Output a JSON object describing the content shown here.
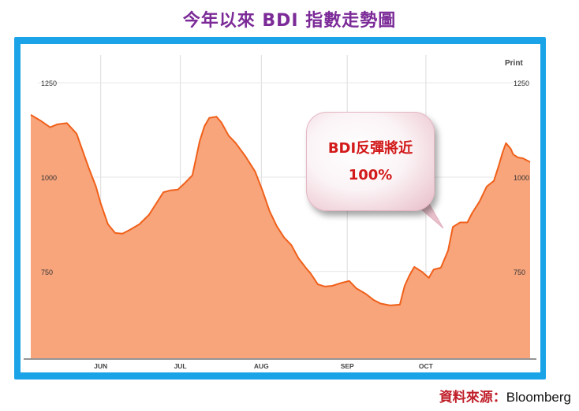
{
  "title": "今年以來 BDI 指數走勢圖",
  "print_label": "Print",
  "source": {
    "label": "資料來源：",
    "value": "Bloomberg"
  },
  "callout": {
    "line1": "BDI反彈將近",
    "line2": "100%"
  },
  "colors": {
    "fill": "#f8a57c",
    "line": "#f0601a",
    "frame": "#1ba3e8",
    "title": "#7b2a97",
    "callout_text": "#d21a1a"
  },
  "chart_data": {
    "type": "area",
    "ylim": [
      520,
      1340
    ],
    "yticks": [
      {
        "label": "1250",
        "value": 1250
      },
      {
        "label": "1000",
        "value": 1000
      },
      {
        "label": "750",
        "value": 750
      }
    ],
    "xticks": [
      {
        "label": "JUN",
        "pos": 0.145
      },
      {
        "label": "JUL",
        "pos": 0.31
      },
      {
        "label": "AUG",
        "pos": 0.478
      },
      {
        "label": "SEP",
        "pos": 0.656
      },
      {
        "label": "OCT",
        "pos": 0.819
      }
    ],
    "series": [
      {
        "values": [
          [
            0.0,
            1165
          ],
          [
            0.02,
            1150
          ],
          [
            0.04,
            1132
          ],
          [
            0.055,
            1140
          ],
          [
            0.075,
            1143
          ],
          [
            0.095,
            1115
          ],
          [
            0.12,
            1025
          ],
          [
            0.135,
            975
          ],
          [
            0.145,
            930
          ],
          [
            0.16,
            875
          ],
          [
            0.175,
            852
          ],
          [
            0.19,
            850
          ],
          [
            0.205,
            860
          ],
          [
            0.225,
            875
          ],
          [
            0.245,
            900
          ],
          [
            0.26,
            930
          ],
          [
            0.275,
            960
          ],
          [
            0.29,
            965
          ],
          [
            0.305,
            967
          ],
          [
            0.32,
            985
          ],
          [
            0.335,
            1005
          ],
          [
            0.35,
            1095
          ],
          [
            0.36,
            1135
          ],
          [
            0.37,
            1157
          ],
          [
            0.385,
            1160
          ],
          [
            0.395,
            1145
          ],
          [
            0.41,
            1110
          ],
          [
            0.425,
            1090
          ],
          [
            0.445,
            1055
          ],
          [
            0.465,
            1015
          ],
          [
            0.48,
            965
          ],
          [
            0.495,
            910
          ],
          [
            0.51,
            870
          ],
          [
            0.525,
            840
          ],
          [
            0.54,
            820
          ],
          [
            0.555,
            785
          ],
          [
            0.57,
            760
          ],
          [
            0.58,
            745
          ],
          [
            0.595,
            716
          ],
          [
            0.61,
            710
          ],
          [
            0.625,
            712
          ],
          [
            0.645,
            720
          ],
          [
            0.66,
            725
          ],
          [
            0.675,
            705
          ],
          [
            0.695,
            690
          ],
          [
            0.71,
            675
          ],
          [
            0.725,
            665
          ],
          [
            0.745,
            660
          ],
          [
            0.765,
            662
          ],
          [
            0.775,
            712
          ],
          [
            0.785,
            740
          ],
          [
            0.795,
            762
          ],
          [
            0.81,
            750
          ],
          [
            0.825,
            733
          ],
          [
            0.835,
            755
          ],
          [
            0.85,
            760
          ],
          [
            0.865,
            805
          ],
          [
            0.875,
            868
          ],
          [
            0.89,
            880
          ],
          [
            0.905,
            880
          ],
          [
            0.915,
            905
          ],
          [
            0.93,
            935
          ],
          [
            0.945,
            975
          ],
          [
            0.96,
            990
          ],
          [
            0.97,
            1030
          ],
          [
            0.978,
            1065
          ],
          [
            0.985,
            1090
          ],
          [
            0.995,
            1075
          ],
          [
            1.0,
            1060
          ],
          [
            1.01,
            1052
          ],
          [
            1.02,
            1050
          ],
          [
            1.035,
            1040
          ]
        ]
      }
    ]
  }
}
